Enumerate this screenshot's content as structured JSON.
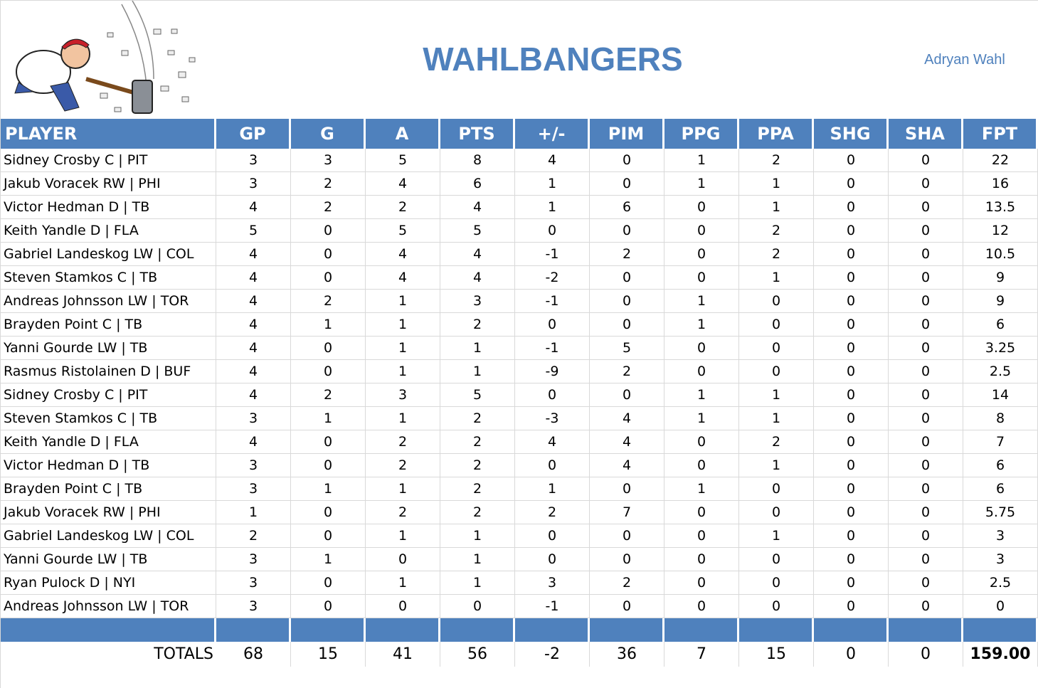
{
  "header": {
    "title": "WAHLBANGERS",
    "owner": "Adryan Wahl"
  },
  "table": {
    "columns": [
      "PLAYER",
      "GP",
      "G",
      "A",
      "PTS",
      "+/-",
      "PIM",
      "PPG",
      "PPA",
      "SHG",
      "SHA",
      "FPT"
    ],
    "rows": [
      [
        "Sidney Crosby C | PIT",
        3,
        3,
        5,
        8,
        4,
        0,
        1,
        2,
        0,
        0,
        22
      ],
      [
        "Jakub Voracek RW | PHI",
        3,
        2,
        4,
        6,
        1,
        0,
        1,
        1,
        0,
        0,
        16
      ],
      [
        "Victor Hedman D | TB",
        4,
        2,
        2,
        4,
        1,
        6,
        0,
        1,
        0,
        0,
        13.5
      ],
      [
        "Keith Yandle D | FLA",
        5,
        0,
        5,
        5,
        0,
        0,
        0,
        2,
        0,
        0,
        12
      ],
      [
        "Gabriel Landeskog LW | COL",
        4,
        0,
        4,
        4,
        -1,
        2,
        0,
        2,
        0,
        0,
        10.5
      ],
      [
        "Steven Stamkos C | TB",
        4,
        0,
        4,
        4,
        -2,
        0,
        0,
        1,
        0,
        0,
        9
      ],
      [
        "Andreas Johnsson LW | TOR",
        4,
        2,
        1,
        3,
        -1,
        0,
        1,
        0,
        0,
        0,
        9
      ],
      [
        "Brayden Point C | TB",
        4,
        1,
        1,
        2,
        0,
        0,
        1,
        0,
        0,
        0,
        6
      ],
      [
        "Yanni Gourde LW | TB",
        4,
        0,
        1,
        1,
        -1,
        5,
        0,
        0,
        0,
        0,
        3.25
      ],
      [
        "Rasmus Ristolainen D | BUF",
        4,
        0,
        1,
        1,
        -9,
        2,
        0,
        0,
        0,
        0,
        2.5
      ],
      [
        "Sidney Crosby C | PIT",
        4,
        2,
        3,
        5,
        0,
        0,
        1,
        1,
        0,
        0,
        14
      ],
      [
        "Steven Stamkos C | TB",
        3,
        1,
        1,
        2,
        -3,
        4,
        1,
        1,
        0,
        0,
        8
      ],
      [
        "Keith Yandle D | FLA",
        4,
        0,
        2,
        2,
        4,
        4,
        0,
        2,
        0,
        0,
        7
      ],
      [
        "Victor Hedman D | TB",
        3,
        0,
        2,
        2,
        0,
        4,
        0,
        1,
        0,
        0,
        6
      ],
      [
        "Brayden Point C | TB",
        3,
        1,
        1,
        2,
        1,
        0,
        1,
        0,
        0,
        0,
        6
      ],
      [
        "Jakub Voracek RW | PHI",
        1,
        0,
        2,
        2,
        2,
        7,
        0,
        0,
        0,
        0,
        5.75
      ],
      [
        "Gabriel Landeskog LW | COL",
        2,
        0,
        1,
        1,
        0,
        0,
        0,
        1,
        0,
        0,
        3
      ],
      [
        "Yanni Gourde LW | TB",
        3,
        1,
        0,
        1,
        0,
        0,
        0,
        0,
        0,
        0,
        3
      ],
      [
        "Ryan Pulock D | NYI",
        3,
        0,
        1,
        1,
        3,
        2,
        0,
        0,
        0,
        0,
        2.5
      ],
      [
        "Andreas Johnsson LW | TOR",
        3,
        0,
        0,
        0,
        -1,
        0,
        0,
        0,
        0,
        0,
        0
      ]
    ],
    "totals": {
      "label": "TOTALS",
      "values": [
        68,
        15,
        41,
        56,
        -2,
        36,
        7,
        15,
        0,
        0,
        "159.00"
      ]
    }
  }
}
